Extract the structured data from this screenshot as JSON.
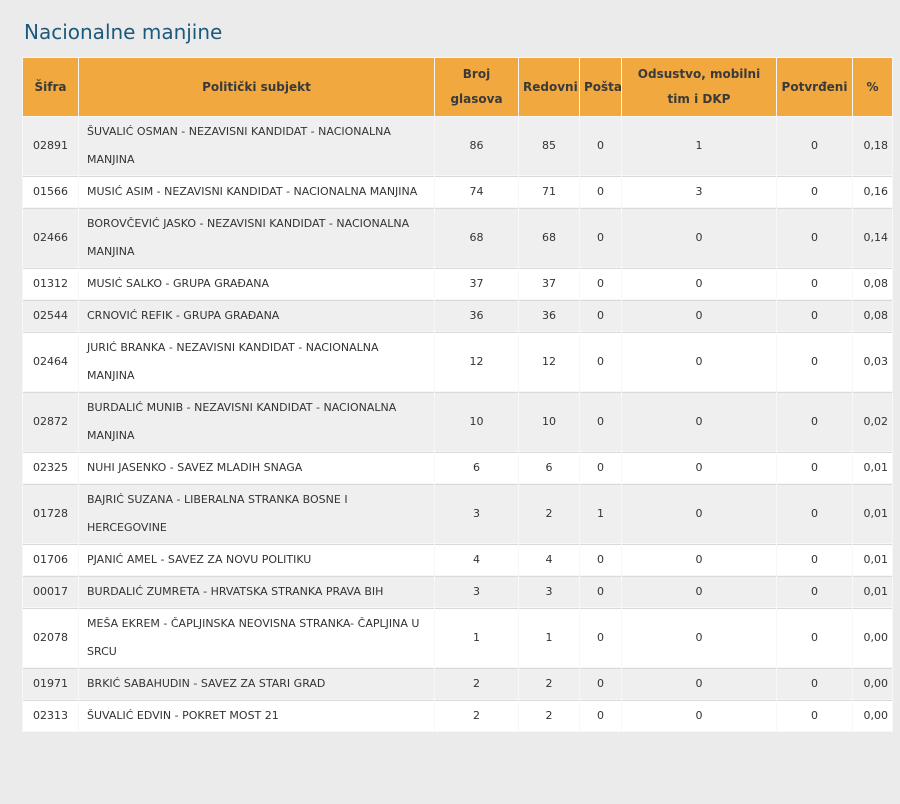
{
  "page": {
    "title": "Nacionalne manjine"
  },
  "colors": {
    "page_bg": "#ebebeb",
    "title": "#1c5a7d",
    "header_bg": "#f1a83f",
    "header_text": "#3a3a3a",
    "row_alt_bg": "#efefef",
    "row_bg": "#ffffff",
    "body_text": "#333333",
    "grid_line": "#d9d9d9"
  },
  "table": {
    "columns": [
      "Šifra",
      "Politički subjekt",
      "Broj glasova",
      "Redovni",
      "Pošta",
      "Odsustvo, mobilni tim i DKP",
      "Potvrđeni",
      "%"
    ],
    "column_keys": [
      "sifra",
      "politicki-subjekt",
      "broj-glasova",
      "redovni",
      "posta",
      "odsustvo-mobilni-tim-dkp",
      "potvrdjeni",
      "percent"
    ],
    "rows": [
      [
        "02891",
        "ŠUVALIĆ OSMAN - NEZAVISNI KANDIDAT - NACIONALNA MANJINA",
        "86",
        "85",
        "0",
        "1",
        "0",
        "0,18"
      ],
      [
        "01566",
        "MUSIĆ ASIM - NEZAVISNI KANDIDAT - NACIONALNA MANJINA",
        "74",
        "71",
        "0",
        "3",
        "0",
        "0,16"
      ],
      [
        "02466",
        "BOROVČEVIĆ JASKO - NEZAVISNI KANDIDAT - NACIONALNA MANJINA",
        "68",
        "68",
        "0",
        "0",
        "0",
        "0,14"
      ],
      [
        "01312",
        "MUSIĆ SALKO - GRUPA GRAĐANA",
        "37",
        "37",
        "0",
        "0",
        "0",
        "0,08"
      ],
      [
        "02544",
        "CRNOVIĆ REFIK - GRUPA GRAĐANA",
        "36",
        "36",
        "0",
        "0",
        "0",
        "0,08"
      ],
      [
        "02464",
        "JURIĆ BRANKA - NEZAVISNI KANDIDAT - NACIONALNA MANJINA",
        "12",
        "12",
        "0",
        "0",
        "0",
        "0,03"
      ],
      [
        "02872",
        "BURDALIĆ MUNIB - NEZAVISNI KANDIDAT - NACIONALNA MANJINA",
        "10",
        "10",
        "0",
        "0",
        "0",
        "0,02"
      ],
      [
        "02325",
        "NUHI JASENKO - SAVEZ MLADIH SNAGA",
        "6",
        "6",
        "0",
        "0",
        "0",
        "0,01"
      ],
      [
        "01728",
        "BAJRIĆ SUZANA - LIBERALNA STRANKA BOSNE I HERCEGOVINE",
        "3",
        "2",
        "1",
        "0",
        "0",
        "0,01"
      ],
      [
        "01706",
        "PJANIĆ AMEL - SAVEZ ZA NOVU POLITIKU",
        "4",
        "4",
        "0",
        "0",
        "0",
        "0,01"
      ],
      [
        "00017",
        "BURDALIĆ ZUMRETA - HRVATSKA STRANKA PRAVA BIH",
        "3",
        "3",
        "0",
        "0",
        "0",
        "0,01"
      ],
      [
        "02078",
        "MEŠA EKREM - ČAPLJINSKA NEOVISNA STRANKA- ČAPLJINA U SRCU",
        "1",
        "1",
        "0",
        "0",
        "0",
        "0,00"
      ],
      [
        "01971",
        "BRKIĆ SABAHUDIN - SAVEZ ZA STARI GRAD",
        "2",
        "2",
        "0",
        "0",
        "0",
        "0,00"
      ],
      [
        "02313",
        "ŠUVALIĆ EDVIN - POKRET MOST 21",
        "2",
        "2",
        "0",
        "0",
        "0",
        "0,00"
      ]
    ]
  }
}
